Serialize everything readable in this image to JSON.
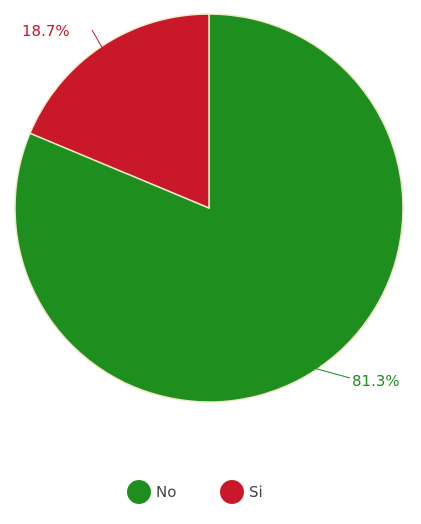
{
  "chart_data": {
    "type": "pie",
    "slices": [
      {
        "label": "No",
        "value": 81.3,
        "display": "81.3%",
        "color": "#1e8f1e"
      },
      {
        "label": "Si",
        "value": 18.7,
        "display": "18.7%",
        "color": "#c8182a"
      }
    ],
    "start_angle": "12 o'clock",
    "direction": "clockwise",
    "legend": {
      "position": "bottom-center",
      "entries": [
        "No",
        "Si"
      ]
    }
  }
}
